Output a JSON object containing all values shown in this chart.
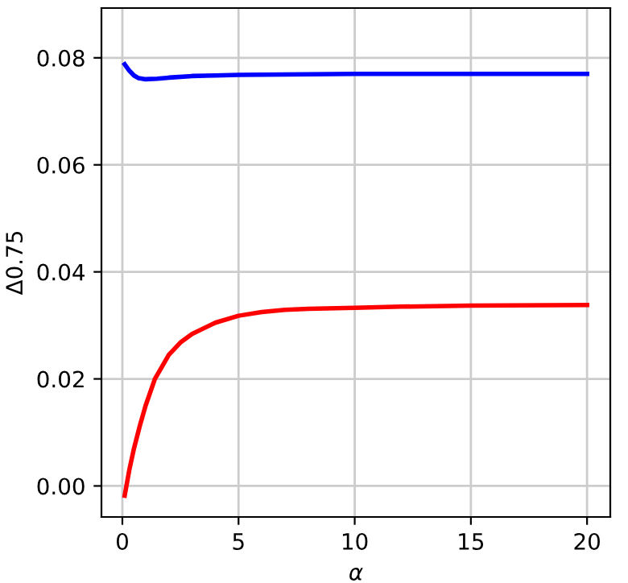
{
  "chart_data": {
    "type": "line",
    "xlabel": "α",
    "ylabel": "Δ0.75",
    "xlim": [
      -0.9,
      21.0
    ],
    "ylim": [
      -0.0058,
      0.0893
    ],
    "xticks": [
      0,
      5,
      10,
      15,
      20
    ],
    "yticks": [
      {
        "value": 0,
        "label": "0.00"
      },
      {
        "value": 0.02,
        "label": "0.02"
      },
      {
        "value": 0.04,
        "label": "0.04"
      },
      {
        "value": 0.06,
        "label": "0.06"
      },
      {
        "value": 0.08,
        "label": "0.08"
      }
    ],
    "grid": true,
    "series": [
      {
        "color": "#0000ff",
        "x": [
          0.1,
          0.3,
          0.5,
          0.7,
          1.0,
          1.5,
          2,
          3,
          4,
          5,
          7,
          10,
          15,
          20
        ],
        "values": [
          0.0788,
          0.0776,
          0.0767,
          0.0762,
          0.076,
          0.0761,
          0.0763,
          0.0766,
          0.0767,
          0.0768,
          0.0769,
          0.077,
          0.077,
          0.077
        ]
      },
      {
        "color": "#ff0000",
        "x": [
          0.1,
          0.3,
          0.5,
          0.75,
          1.0,
          1.4,
          2,
          2.5,
          3,
          4,
          5,
          6,
          7,
          8,
          10,
          12,
          15,
          20
        ],
        "values": [
          -0.0018,
          0.003,
          0.007,
          0.0112,
          0.015,
          0.02,
          0.0245,
          0.0268,
          0.0284,
          0.0305,
          0.0318,
          0.0325,
          0.0329,
          0.0331,
          0.0333,
          0.0335,
          0.0337,
          0.0338
        ]
      }
    ]
  }
}
